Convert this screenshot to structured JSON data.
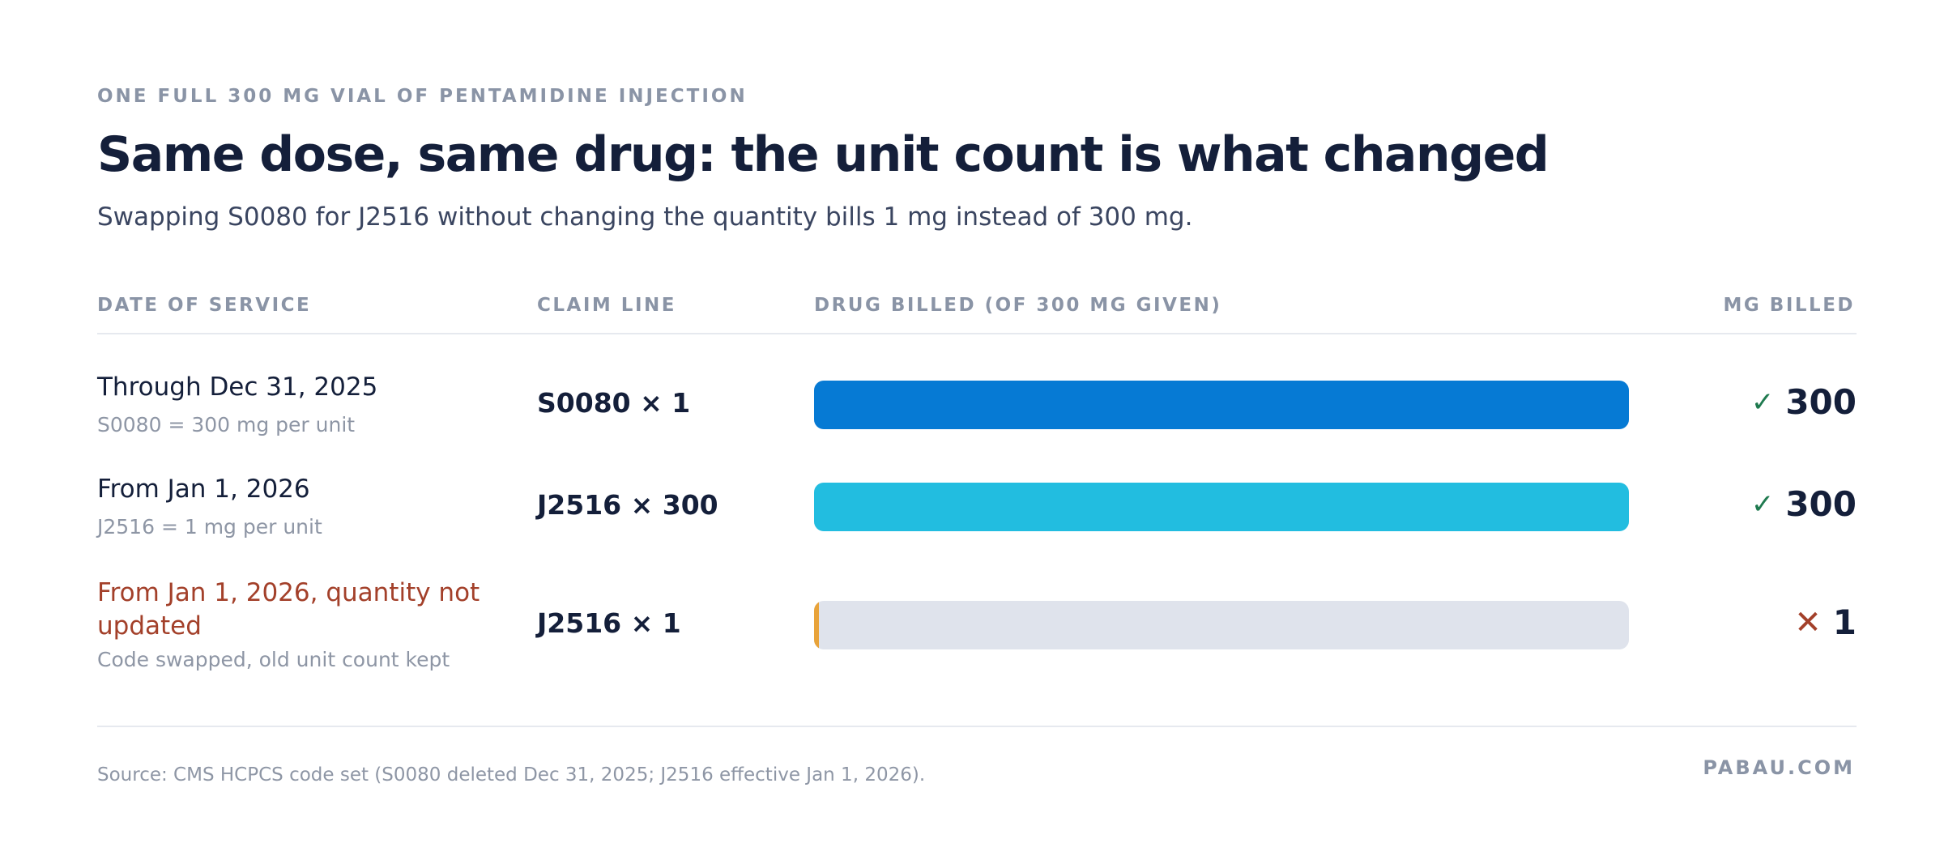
{
  "header": {
    "eyebrow": "ONE FULL 300 MG VIAL OF PENTAMIDINE INJECTION",
    "title": "Same dose, same drug: the unit count is what changed",
    "subtitle": "Swapping S0080 for J2516 without changing the quantity bills 1 mg instead of 300 mg."
  },
  "columns": {
    "date": "DATE OF SERVICE",
    "claim": "CLAIM LINE",
    "drug": "DRUG BILLED (OF 300 MG GIVEN)",
    "mg": "MG BILLED"
  },
  "colors": {
    "s0080": "#067ad4",
    "j2516": "#22bde0",
    "sliver": "#e8a33a",
    "track": "#dfe3ec",
    "ok": "#1f7a4f",
    "bad": "#a3402a"
  },
  "chart_data": {
    "type": "bar",
    "orientation": "horizontal",
    "xlim": [
      0,
      300
    ],
    "categories": [
      "S0080 × 1",
      "J2516 × 300",
      "J2516 × 1"
    ],
    "values": [
      300,
      300,
      1
    ],
    "rows": [
      {
        "date": "Through Dec 31, 2025",
        "note": "S0080 = 300 mg per unit",
        "claim": "S0080 × 1",
        "mg_billed": 300,
        "mg_label": "300",
        "status": "ok",
        "mark": "✓",
        "color_key": "s0080",
        "warning": false
      },
      {
        "date": "From Jan 1, 2026",
        "note": "J2516 = 1 mg per unit",
        "claim": "J2516 × 300",
        "mg_billed": 300,
        "mg_label": "300",
        "status": "ok",
        "mark": "✓",
        "color_key": "j2516",
        "warning": false
      },
      {
        "date": "From Jan 1, 2026, quantity not updated",
        "note": "Code swapped, old unit count kept",
        "claim": "J2516 × 1",
        "mg_billed": 1,
        "mg_label": "1",
        "status": "bad",
        "mark": "✕",
        "color_key": "sliver",
        "warning": true
      }
    ]
  },
  "footer": {
    "source": "Source: CMS HCPCS code set (S0080 deleted Dec 31, 2025; J2516 effective Jan 1, 2026).",
    "brand": "PABAU.COM"
  }
}
